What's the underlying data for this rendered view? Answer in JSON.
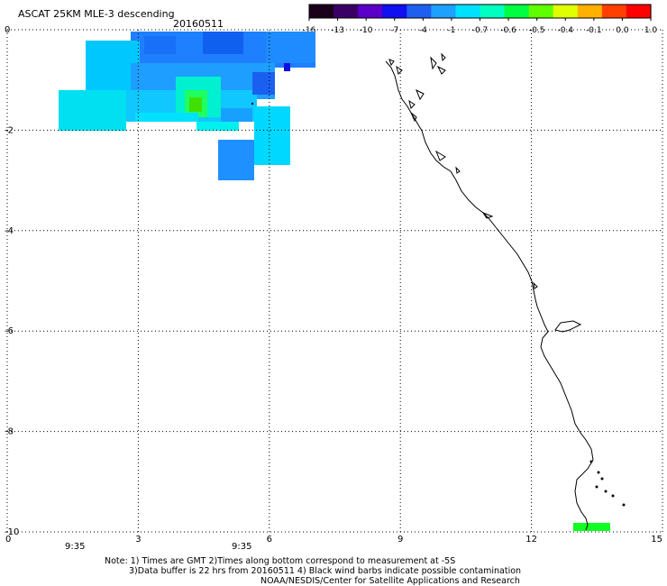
{
  "header": {
    "title": "ASCAT 25KM MLE-3 descending",
    "date": "20160511"
  },
  "colorbar": {
    "labels": [
      "-16",
      "-13",
      "-10",
      "-7",
      "-4",
      "-1",
      "-0.7",
      "-0.6",
      "-0.5",
      "-0.4",
      "-0.1",
      "0.0",
      "1.0"
    ],
    "colors": [
      "#1a001a",
      "#3b0066",
      "#5a00c8",
      "#1010f0",
      "#1e5ff0",
      "#1ea0ff",
      "#00e0ff",
      "#00ffc0",
      "#00ff40",
      "#60ff00",
      "#e0ff00",
      "#ffb000",
      "#ff4000",
      "#ff0000"
    ]
  },
  "axes": {
    "x_ticks": [
      "0",
      "3",
      "6",
      "9",
      "12",
      "15"
    ],
    "y_ticks": [
      "0",
      "-2",
      "-4",
      "-6",
      "-8",
      "-10"
    ]
  },
  "time_labels": [
    "9:35",
    "9:35"
  ],
  "notes": [
    "Note: 1) Times are GMT 2)Times along bottom correspond to measurement at -5S",
    "3)Data buffer is 22 hrs from 20160511 4) Black wind barbs indicate possible contamination",
    "NOAA/NESDIS/Center for Satellite Applications and Research"
  ],
  "colors": {
    "time_label": "#b03000",
    "coast": "#000000",
    "grid": "#000000"
  }
}
